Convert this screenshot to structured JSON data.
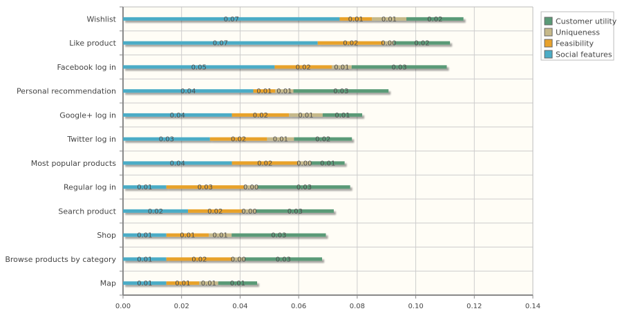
{
  "chart_data": {
    "type": "bar",
    "orientation": "horizontal",
    "stacked": true,
    "categories": [
      "Wishlist",
      "Like product",
      "Facebook log in",
      "Personal recommendation",
      "Google+ log in",
      "Twitter log in",
      "Most popular products",
      "Regular log in",
      "Search product",
      "Shop",
      "Browse products by category",
      "Map"
    ],
    "series": [
      {
        "name": "Social features",
        "color": "#4bacc6",
        "values": [
          0.074,
          0.0665,
          0.0518,
          0.0445,
          0.0372,
          0.0297,
          0.0372,
          0.0148,
          0.0222,
          0.0148,
          0.0148,
          0.0148
        ],
        "labels": [
          "0.07",
          "0.07",
          "0.05",
          "0.04",
          "0.04",
          "0.03",
          "0.04",
          "0.01",
          "0.02",
          "0.01",
          "0.01",
          "0.01"
        ]
      },
      {
        "name": "Feasibility",
        "color": "#e8a22c",
        "values": [
          0.011,
          0.0225,
          0.0195,
          0.0075,
          0.0195,
          0.0195,
          0.0225,
          0.0265,
          0.0185,
          0.0145,
          0.0225,
          0.0112
        ],
        "labels": [
          "0.01",
          "0.02",
          "0.02",
          "0.01",
          "0.02",
          "0.02",
          "0.02",
          "0.03",
          "0.02",
          "0.01",
          "0.02",
          "0.01"
        ]
      },
      {
        "name": "Uniqueness",
        "color": "#c6b98a",
        "values": [
          0.0118,
          0.0035,
          0.0068,
          0.0062,
          0.0115,
          0.0092,
          0.0045,
          0.0048,
          0.0048,
          0.0078,
          0.0042,
          0.0065
        ],
        "labels": [
          "0.01",
          "0.00",
          "0.01",
          "0.01",
          "0.01",
          "0.01",
          "0.00",
          "0.00",
          "0.00",
          "0.01",
          "0.00",
          "0.01"
        ]
      },
      {
        "name": "Customer utility",
        "color": "#5a9a77",
        "values": [
          0.0195,
          0.0192,
          0.0325,
          0.0325,
          0.0135,
          0.0198,
          0.0115,
          0.0315,
          0.0265,
          0.0322,
          0.0265,
          0.0133
        ],
        "labels": [
          "0.02",
          "0.02",
          "0.03",
          "0.03",
          "0.01",
          "0.02",
          "0.01",
          "0.03",
          "0.03",
          "0.03",
          "0.03",
          "0.01"
        ]
      }
    ],
    "xlim": [
      0,
      0.14
    ],
    "xticks": [
      "0.00",
      "0.02",
      "0.04",
      "0.06",
      "0.08",
      "0.10",
      "0.12",
      "0.14"
    ],
    "xtick_values": [
      0,
      0.02,
      0.04,
      0.06,
      0.08,
      0.1,
      0.12,
      0.14
    ],
    "grid": true,
    "legend_position": "top-right",
    "legend_order": [
      "Customer utility",
      "Uniqueness",
      "Feasibility",
      "Social features"
    ],
    "title": "",
    "xlabel": "",
    "ylabel": ""
  }
}
